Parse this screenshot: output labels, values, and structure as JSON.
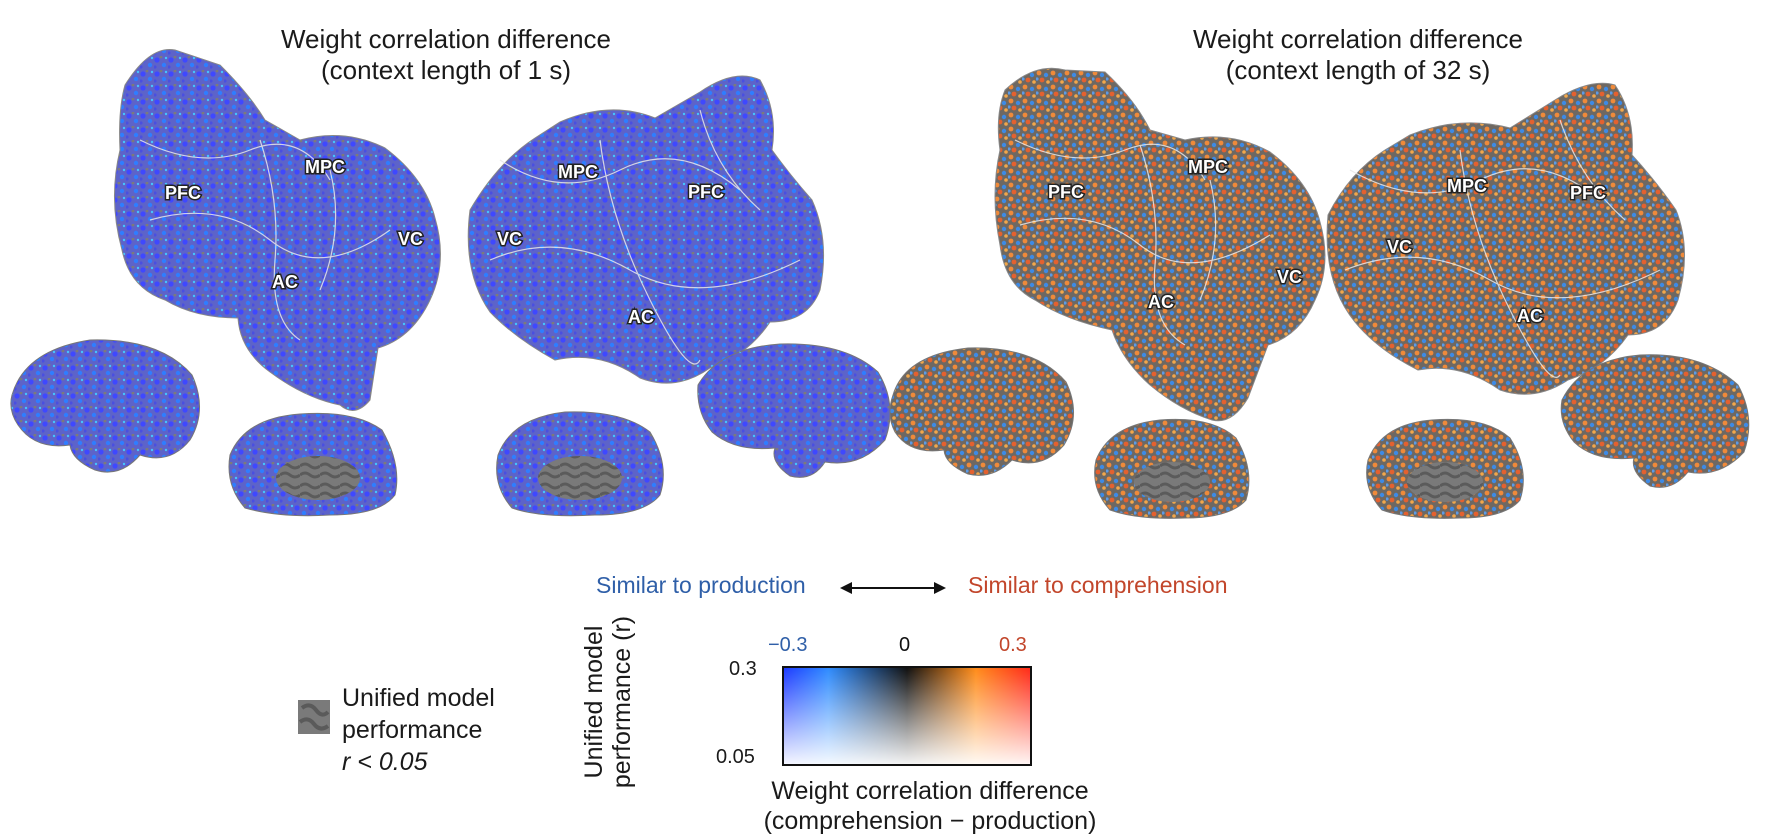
{
  "panels": [
    {
      "title_line1": "Weight correlation difference",
      "title_line2": "(context length of 1 s)",
      "labels": {
        "pfc_left": "PFC",
        "mpc_left": "MPC",
        "ac_left": "AC",
        "vc_left": "VC",
        "mpc_right": "MPC",
        "pfc_right": "PFC",
        "vc_right": "VC",
        "ac_right": "AC"
      }
    },
    {
      "title_line1": "Weight correlation difference",
      "title_line2": "(context length of 32 s)",
      "labels": {
        "pfc_left": "PFC",
        "mpc_left": "MPC",
        "ac_left": "AC",
        "vc_left": "VC",
        "mpc_right": "MPC",
        "pfc_right": "PFC",
        "vc_right": "VC",
        "ac_right": "AC"
      }
    }
  ],
  "direction": {
    "left": "Similar to production",
    "right": "Similar to comprehension"
  },
  "colorbar": {
    "x_ticks": [
      "−0.3",
      "0",
      "0.3"
    ],
    "y_ticks": [
      "0.3",
      "0.05"
    ],
    "ylabel_line1": "Unified model",
    "ylabel_line2": "performance (r)",
    "xlabel_line1": "Weight correlation difference",
    "xlabel_line2": "(comprehension − production)"
  },
  "mask_legend": {
    "line1": "Unified model",
    "line2": "performance",
    "line3": "r < 0.05"
  },
  "colors": {
    "production": "#2f5fa8",
    "comprehension": "#c2462b",
    "cortex_gray": "#6f6f6f",
    "blue_map": "#3c4cff",
    "orange_map": "#e8833a"
  }
}
